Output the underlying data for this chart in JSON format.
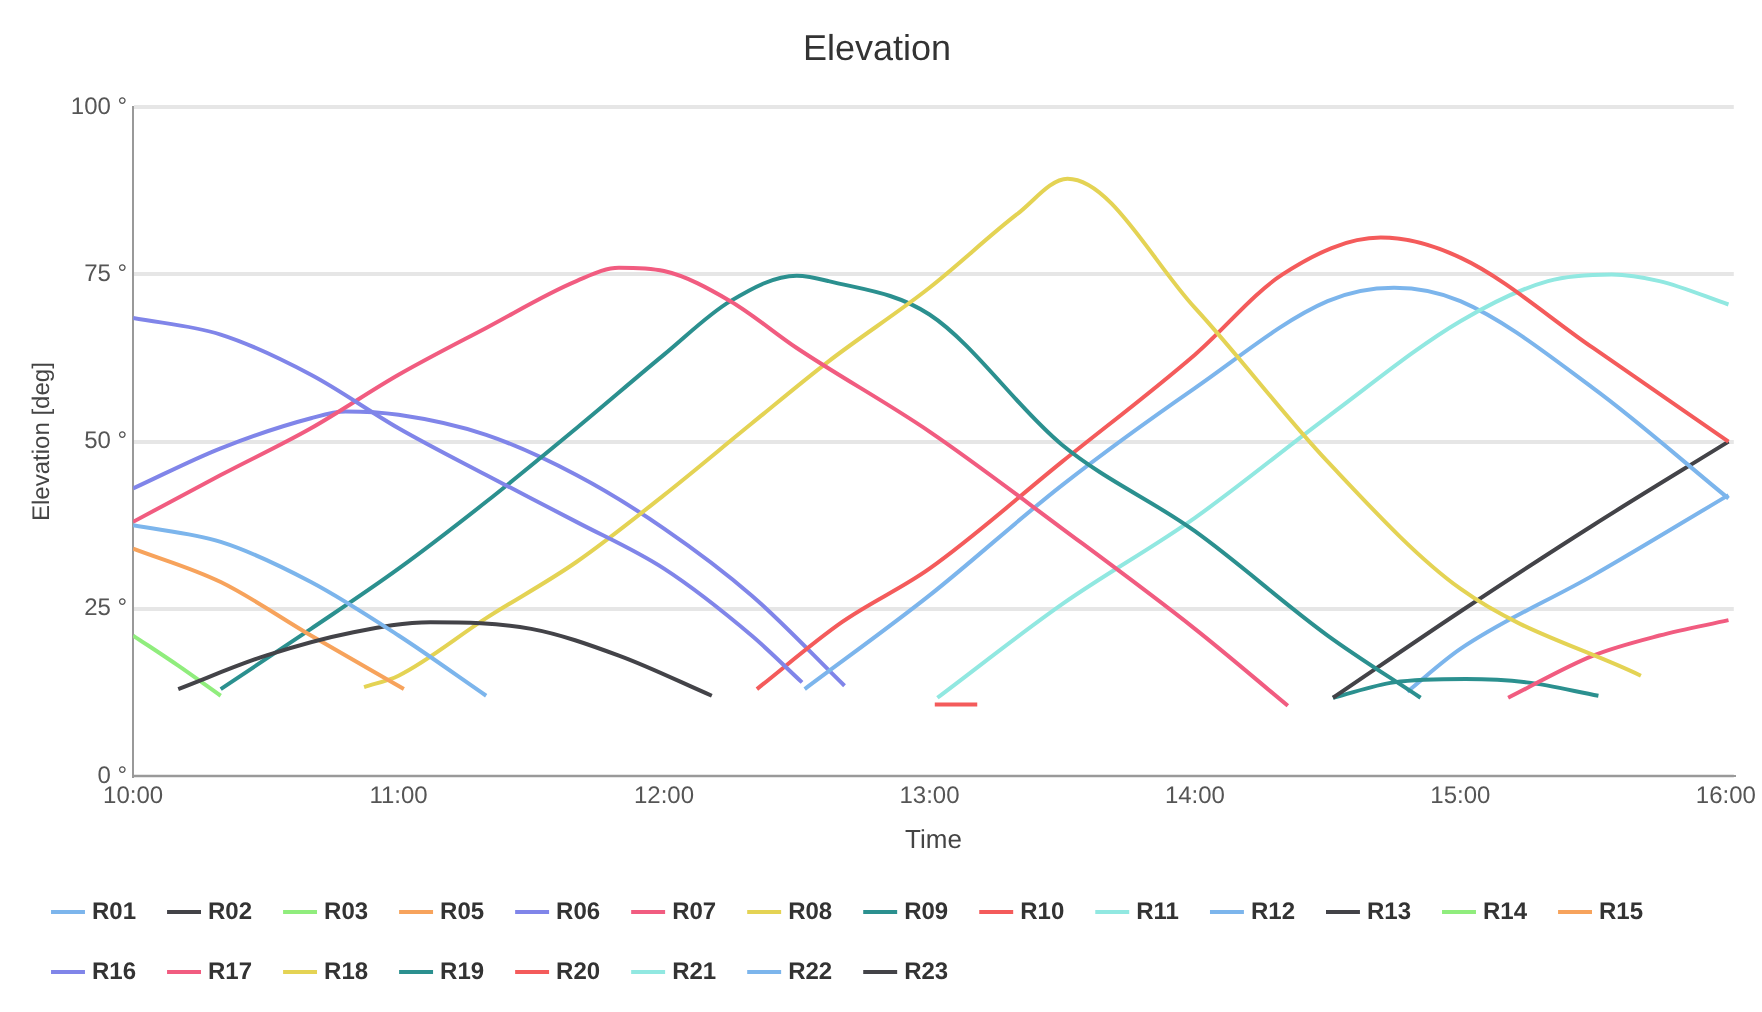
{
  "chart_data": {
    "type": "line",
    "title": "Elevation",
    "xlabel": "Time",
    "ylabel": "Elevation [deg]",
    "xlim": [
      10,
      16.03
    ],
    "xticks": [
      {
        "value": 10,
        "label": "10:00"
      },
      {
        "value": 11,
        "label": "11:00"
      },
      {
        "value": 12,
        "label": "12:00"
      },
      {
        "value": 13,
        "label": "13:00"
      },
      {
        "value": 14,
        "label": "14:00"
      },
      {
        "value": 15,
        "label": "15:00"
      },
      {
        "value": 16,
        "label": "16:00"
      }
    ],
    "ylim": [
      0,
      100
    ],
    "yticks": [
      {
        "value": 0,
        "label": "0 °"
      },
      {
        "value": 25,
        "label": "25 °"
      },
      {
        "value": 50,
        "label": "50 °"
      },
      {
        "value": 75,
        "label": "75 °"
      },
      {
        "value": 100,
        "label": "100 °"
      }
    ],
    "grid": "y",
    "legend": "bottom",
    "marker": "none",
    "line_style": "solid",
    "series": [
      {
        "name": "R01",
        "color": "#7cb5ec",
        "x": [
          10,
          10.33,
          10.67,
          11,
          11.33
        ],
        "values": [
          37.5,
          35,
          29,
          21,
          12
        ]
      },
      {
        "name": "R02",
        "color": "#434348",
        "x": [
          10.17,
          10.5,
          10.83,
          11.12,
          11.5,
          11.83,
          12.18
        ],
        "values": [
          13,
          18,
          21.5,
          23,
          22,
          18,
          12
        ]
      },
      {
        "name": "R03",
        "color": "#90ed7d",
        "x": [
          10,
          10.17,
          10.33
        ],
        "values": [
          21,
          16.5,
          12
        ]
      },
      {
        "name": "R05",
        "color": "#f7a35c",
        "x": [
          10,
          10.33,
          10.67,
          11.02
        ],
        "values": [
          34,
          29,
          21,
          13
        ]
      },
      {
        "name": "R06",
        "color": "#8085e9",
        "x": [
          10,
          10.33,
          10.67,
          11,
          11.33,
          11.67,
          12,
          12.33,
          12.52
        ],
        "values": [
          68.5,
          66,
          60,
          52,
          45,
          38,
          31,
          21,
          14
        ]
      },
      {
        "name": "R07",
        "color": "#f15c80",
        "x": [
          10,
          10.33,
          10.67,
          11,
          11.33,
          11.67,
          11.83,
          12,
          12.25,
          12.5,
          13,
          13.5,
          14,
          14.35
        ],
        "values": [
          38,
          45,
          52,
          60,
          67,
          74,
          76,
          75.5,
          71,
          64,
          51.5,
          37,
          22,
          10.5
        ]
      },
      {
        "name": "R08",
        "color": "#e4d354",
        "x": [
          10.87,
          11,
          11.33,
          11.67,
          12,
          12.33,
          12.62,
          13,
          13.33,
          13.52,
          14,
          14.5,
          15,
          15.68
        ],
        "values": [
          13.3,
          15,
          23.6,
          32,
          42,
          52.7,
          62,
          73,
          84,
          89.3,
          70,
          47,
          28,
          15
        ]
      },
      {
        "name": "R09",
        "color": "#2b908f",
        "x": [
          10.33,
          10.67,
          11,
          11.33,
          11.67,
          12,
          12.25,
          12.5,
          12.62,
          13,
          13.5,
          14,
          14.5,
          14.85
        ],
        "values": [
          13,
          22,
          31,
          41,
          52,
          63,
          71,
          74.8,
          74,
          69,
          49.5,
          36.6,
          21,
          11.7
        ]
      },
      {
        "name": "R10",
        "color": "#f45b5b",
        "x": [
          12.35,
          12.67,
          13,
          13.5,
          14,
          14.33,
          14.7,
          15,
          15.5,
          16.01
        ],
        "values": [
          13,
          23,
          31,
          47,
          63,
          75,
          80.5,
          77.5,
          64,
          50
        ]
      },
      {
        "name": "R11",
        "color": "#91e8e1",
        "x": [
          13.03,
          13.5,
          14,
          14.5,
          15,
          15.33,
          15.57,
          15.75,
          16.01
        ],
        "values": [
          11.7,
          25.7,
          38.6,
          53.7,
          68,
          74,
          75,
          74,
          70.5
        ]
      },
      {
        "name": "R12",
        "color": "#7cb5ec",
        "x": [
          12.53,
          13,
          13.5,
          14,
          14.5,
          14.75,
          15,
          15.5,
          16.01
        ],
        "values": [
          13,
          27,
          43.5,
          58,
          71,
          73,
          71,
          58,
          41.5
        ]
      },
      {
        "name": "R13",
        "color": "#434348",
        "x": [
          14.52,
          15,
          15.5,
          16.01
        ],
        "values": [
          11.7,
          24.6,
          37.5,
          50
        ]
      },
      {
        "name": "R14",
        "color": "#90ed7d"
      },
      {
        "name": "R15",
        "color": "#f7a35c"
      },
      {
        "name": "R16",
        "color": "#8085e9",
        "x": [
          10,
          10.33,
          10.67,
          10.8,
          11,
          11.33,
          11.67,
          12,
          12.33,
          12.68
        ],
        "values": [
          43,
          49,
          53.5,
          54.5,
          54,
          51,
          45,
          37,
          27,
          13.5
        ]
      },
      {
        "name": "R17",
        "color": "#f15c80",
        "x": [
          15.18,
          15.5,
          15.75,
          16.01
        ],
        "values": [
          11.7,
          18,
          21,
          23.3
        ]
      },
      {
        "name": "R18",
        "color": "#e4d354"
      },
      {
        "name": "R19",
        "color": "#2b908f",
        "x": [
          14.52,
          14.75,
          15.02,
          15.25,
          15.52
        ],
        "values": [
          11.7,
          14,
          14.5,
          14,
          12
        ]
      },
      {
        "name": "R20",
        "color": "#f45b5b",
        "x": [
          13.02,
          13.18
        ],
        "values": [
          10.7,
          10.7
        ]
      },
      {
        "name": "R21",
        "color": "#91e8e1"
      },
      {
        "name": "R22",
        "color": "#7cb5ec",
        "x": [
          14.8,
          15,
          15.5,
          16.01
        ],
        "values": [
          12.6,
          19,
          30,
          42
        ]
      },
      {
        "name": "R23",
        "color": "#434348"
      }
    ]
  }
}
